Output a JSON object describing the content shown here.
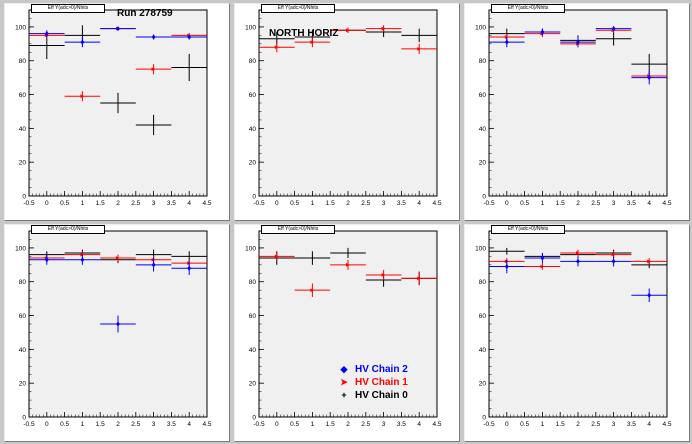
{
  "colors": {
    "chain2": "#0000ff",
    "chain1": "#ff0000",
    "chain0": "#000000",
    "canvas": "#c8c8c8",
    "frame": "#f0f0f0"
  },
  "pads": [
    {
      "title": "Eff Y(adc>0)/Nhits",
      "label": "Run 278759",
      "side_label": "",
      "chart_data": {
        "type": "scatter",
        "xlim": [
          -0.5,
          4.5
        ],
        "ylim": [
          0,
          110
        ],
        "x_ticks": [
          "-0.5",
          "0",
          "0.5",
          "1",
          "1.5",
          "2",
          "2.5",
          "3",
          "3.5",
          "4",
          "4.5"
        ],
        "y_ticks": [
          "0",
          "20",
          "40",
          "60",
          "80",
          "100"
        ],
        "series": [
          {
            "name": "HV Chain 2",
            "points": [
              [
                0,
                96,
                2
              ],
              [
                1,
                91,
                3
              ],
              [
                2,
                99,
                1
              ],
              [
                3,
                94,
                1.5
              ],
              [
                4,
                94,
                1.5
              ]
            ]
          },
          {
            "name": "HV Chain 1",
            "points": [
              [
                0,
                95,
                1.5
              ],
              [
                1,
                59,
                3
              ],
              [
                2,
                99,
                1
              ],
              [
                3,
                75,
                3
              ],
              [
                4,
                95,
                1.5
              ]
            ]
          },
          {
            "name": "HV Chain 0",
            "points": [
              [
                0,
                89,
                8
              ],
              [
                1,
                95,
                6
              ],
              [
                2,
                55,
                6
              ],
              [
                3,
                42,
                6
              ],
              [
                4,
                76,
                8
              ]
            ]
          }
        ]
      }
    },
    {
      "title": "Eff Y(adc>0)/Nhits",
      "label": "",
      "side_label": "NORTH HORIZ",
      "chart_data": {
        "type": "scatter",
        "xlim": [
          -0.5,
          4.5
        ],
        "ylim": [
          0,
          110
        ],
        "x_ticks": [
          "-0.5",
          "0",
          "0.5",
          "1",
          "1.5",
          "2",
          "2.5",
          "3",
          "3.5",
          "4",
          "4.5"
        ],
        "y_ticks": [
          "0",
          "20",
          "40",
          "60",
          "80",
          "100"
        ],
        "series": [
          {
            "name": "HV Chain 2",
            "points": []
          },
          {
            "name": "HV Chain 1",
            "points": [
              [
                0,
                88,
                3
              ],
              [
                1,
                91,
                3
              ],
              [
                2,
                98,
                1.5
              ],
              [
                3,
                99,
                2
              ],
              [
                4,
                87,
                3
              ]
            ]
          },
          {
            "name": "HV Chain 0",
            "points": [
              [
                0,
                93,
                4
              ],
              [
                1,
                94,
                4
              ],
              [
                2,
                98,
                1.5
              ],
              [
                3,
                97,
                3
              ],
              [
                4,
                95,
                4
              ]
            ]
          }
        ]
      }
    },
    {
      "title": "Eff Y(adc>0)/Nhits",
      "label": "",
      "side_label": "",
      "chart_data": {
        "type": "scatter",
        "xlim": [
          -0.5,
          4.5
        ],
        "ylim": [
          0,
          110
        ],
        "x_ticks": [
          "-0.5",
          "0",
          "0.5",
          "1",
          "1.5",
          "2",
          "2.5",
          "3",
          "3.5",
          "4",
          "4.5"
        ],
        "y_ticks": [
          "0",
          "20",
          "40",
          "60",
          "80",
          "100"
        ],
        "series": [
          {
            "name": "HV Chain 2",
            "points": [
              [
                0,
                91,
                3
              ],
              [
                1,
                97,
                2
              ],
              [
                2,
                91,
                3
              ],
              [
                3,
                99,
                1.5
              ],
              [
                4,
                70,
                4
              ]
            ]
          },
          {
            "name": "HV Chain 1",
            "points": [
              [
                0,
                94,
                2
              ],
              [
                1,
                96,
                2
              ],
              [
                2,
                90,
                2
              ],
              [
                3,
                98,
                1.5
              ],
              [
                4,
                71,
                2
              ]
            ]
          },
          {
            "name": "HV Chain 0",
            "points": [
              [
                0,
                96,
                3
              ],
              [
                1,
                97,
                2
              ],
              [
                2,
                92,
                3
              ],
              [
                3,
                93,
                4
              ],
              [
                4,
                78,
                6
              ]
            ]
          }
        ]
      }
    },
    {
      "title": "Eff Y(adc>0)/Nhits",
      "label": "",
      "side_label": "",
      "chart_data": {
        "type": "scatter",
        "xlim": [
          -0.5,
          4.5
        ],
        "ylim": [
          0,
          110
        ],
        "x_ticks": [
          "-0.5",
          "0",
          "0.5",
          "1",
          "1.5",
          "2",
          "2.5",
          "3",
          "3.5",
          "4",
          "4.5"
        ],
        "y_ticks": [
          "0",
          "20",
          "40",
          "60",
          "80",
          "100"
        ],
        "series": [
          {
            "name": "HV Chain 2",
            "points": [
              [
                0,
                93,
                3
              ],
              [
                1,
                93,
                3
              ],
              [
                2,
                55,
                5
              ],
              [
                3,
                90,
                4
              ],
              [
                4,
                88,
                4
              ]
            ]
          },
          {
            "name": "HV Chain 1",
            "points": [
              [
                0,
                94,
                2
              ],
              [
                1,
                96,
                2
              ],
              [
                2,
                94,
                2
              ],
              [
                3,
                93,
                2
              ],
              [
                4,
                91,
                2
              ]
            ]
          },
          {
            "name": "HV Chain 0",
            "points": [
              [
                0,
                96,
                2
              ],
              [
                1,
                97,
                2
              ],
              [
                2,
                93,
                2
              ],
              [
                3,
                96,
                3
              ],
              [
                4,
                95,
                3
              ]
            ]
          }
        ]
      }
    },
    {
      "title": "Eff Y(adc>0)/Nhits",
      "label": "",
      "side_label": "",
      "chart_data": {
        "type": "scatter",
        "xlim": [
          -0.5,
          4.5
        ],
        "ylim": [
          0,
          110
        ],
        "x_ticks": [
          "-0.5",
          "0",
          "0.5",
          "1",
          "1.5",
          "2",
          "2.5",
          "3",
          "3.5",
          "4",
          "4.5"
        ],
        "y_ticks": [
          "0",
          "20",
          "40",
          "60",
          "80",
          "100"
        ],
        "legend": {
          "placement": "bottom-right",
          "entries": [
            "HV Chain 2",
            "HV Chain 1",
            "HV Chain 0"
          ]
        },
        "series": [
          {
            "name": "HV Chain 2",
            "points": []
          },
          {
            "name": "HV Chain 1",
            "points": [
              [
                0,
                95,
                2
              ],
              [
                1,
                75,
                4
              ],
              [
                2,
                90,
                3
              ],
              [
                3,
                84,
                3
              ],
              [
                4,
                82,
                4
              ]
            ]
          },
          {
            "name": "HV Chain 0",
            "points": [
              [
                0,
                94,
                4
              ],
              [
                1,
                94,
                4
              ],
              [
                2,
                97,
                3
              ],
              [
                3,
                81,
                4
              ],
              [
                4,
                82,
                4
              ]
            ]
          }
        ]
      }
    },
    {
      "title": "Eff Y(adc>0)/Nhits",
      "label": "",
      "side_label": "",
      "chart_data": {
        "type": "scatter",
        "xlim": [
          -0.5,
          4.5
        ],
        "ylim": [
          0,
          110
        ],
        "x_ticks": [
          "-0.5",
          "0",
          "0.5",
          "1",
          "1.5",
          "2",
          "2.5",
          "3",
          "3.5",
          "4",
          "4.5"
        ],
        "y_ticks": [
          "0",
          "20",
          "40",
          "60",
          "80",
          "100"
        ],
        "series": [
          {
            "name": "HV Chain 2",
            "points": [
              [
                0,
                89,
                4
              ],
              [
                1,
                94,
                3
              ],
              [
                2,
                92,
                3
              ],
              [
                3,
                92,
                3
              ],
              [
                4,
                72,
                4
              ]
            ]
          },
          {
            "name": "HV Chain 1",
            "points": [
              [
                0,
                92,
                2
              ],
              [
                1,
                89,
                2
              ],
              [
                2,
                97,
                2
              ],
              [
                3,
                96,
                2
              ],
              [
                4,
                92,
                2
              ]
            ]
          },
          {
            "name": "HV Chain 0",
            "points": [
              [
                0,
                98,
                2
              ],
              [
                1,
                95,
                2
              ],
              [
                2,
                96,
                2
              ],
              [
                3,
                97,
                2
              ],
              [
                4,
                90,
                2
              ]
            ]
          }
        ]
      }
    }
  ],
  "legend": {
    "entries": [
      {
        "label": "HV Chain 2",
        "marker": "◆"
      },
      {
        "label": "HV Chain 1",
        "marker": "➤"
      },
      {
        "label": "HV Chain 0",
        "marker": "+"
      }
    ]
  }
}
